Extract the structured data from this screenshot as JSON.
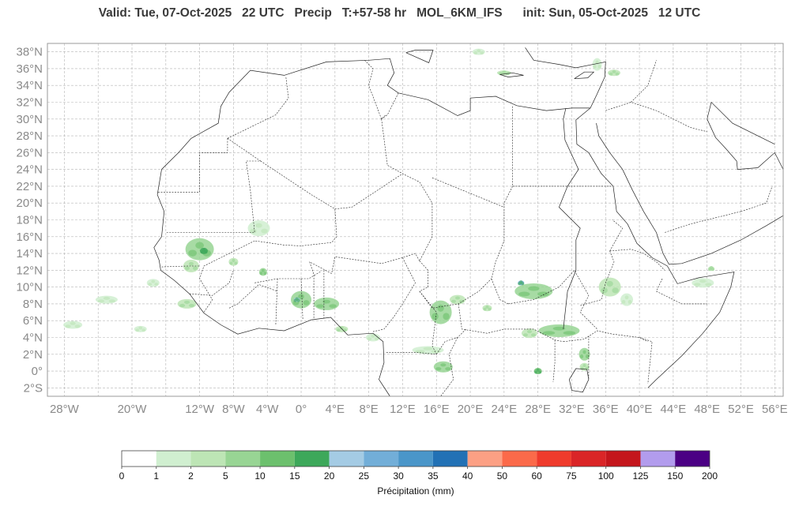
{
  "title": "Valid: Tue, 07-Oct-2025   22 UTC   Precip   T:+57-58 hr   MOL_6KM_IFS      init: Sun, 05-Oct-2025   12 UTC",
  "map": {
    "lat_labels": [
      "38°N",
      "36°N",
      "34°N",
      "32°N",
      "30°N",
      "28°N",
      "26°N",
      "24°N",
      "22°N",
      "20°N",
      "18°N",
      "16°N",
      "14°N",
      "12°N",
      "10°N",
      "8°N",
      "6°N",
      "4°N",
      "2°N",
      "0°",
      "2°S"
    ],
    "lon_labels": [
      "28°W",
      "20°W",
      "12°W",
      "8°W",
      "4°W",
      "0°",
      "4°E",
      "8°E",
      "12°E",
      "16°E",
      "20°E",
      "24°E",
      "28°E",
      "32°E",
      "36°E",
      "40°E",
      "44°E",
      "48°E",
      "52°E",
      "56°E"
    ],
    "lon_range": [
      -30,
      57
    ],
    "lat_range": [
      -3,
      39
    ],
    "grid": true
  },
  "colorbar": {
    "label": "Précipitation (mm)",
    "ticks": [
      "0",
      "1",
      "2",
      "5",
      "10",
      "15",
      "20",
      "25",
      "30",
      "35",
      "40",
      "50",
      "60",
      "75",
      "100",
      "125",
      "150",
      "200"
    ],
    "colors": [
      "#ffffff",
      "#d0efd0",
      "#bde5b5",
      "#98d594",
      "#6cc06d",
      "#3da85a",
      "#a4cbe4",
      "#72aed8",
      "#4a96c9",
      "#2271b5",
      "#fca084",
      "#fb6a4a",
      "#ef3b2c",
      "#da2527",
      "#c4161c",
      "#b29ced",
      "#4b0084"
    ]
  },
  "colors": {
    "border": "#222222",
    "grid": "#b4b4b4",
    "label": "#8a8a8a",
    "axes": "#9a9a9a"
  },
  "precip_cells": [
    {
      "lon": -5.0,
      "lat": 17.0,
      "rx": 14,
      "ry": 10,
      "c": 1
    },
    {
      "lon": -12.0,
      "lat": 14.5,
      "rx": 18,
      "ry": 14,
      "c": 3
    },
    {
      "lon": -13.0,
      "lat": 12.5,
      "rx": 10,
      "ry": 8,
      "c": 2
    },
    {
      "lon": -11.5,
      "lat": 14.3,
      "rx": 5,
      "ry": 4,
      "c": 5
    },
    {
      "lon": -8.0,
      "lat": 13.0,
      "rx": 6,
      "ry": 5,
      "c": 2
    },
    {
      "lon": -4.5,
      "lat": 11.8,
      "rx": 5,
      "ry": 5,
      "c": 3
    },
    {
      "lon": -13.5,
      "lat": 8.0,
      "rx": 12,
      "ry": 6,
      "c": 2
    },
    {
      "lon": -17.5,
      "lat": 10.5,
      "rx": 8,
      "ry": 5,
      "c": 1
    },
    {
      "lon": -23.0,
      "lat": 8.5,
      "rx": 14,
      "ry": 5,
      "c": 1
    },
    {
      "lon": -27.0,
      "lat": 5.5,
      "rx": 12,
      "ry": 5,
      "c": 1
    },
    {
      "lon": -19.0,
      "lat": 5.0,
      "rx": 8,
      "ry": 4,
      "c": 1
    },
    {
      "lon": 0.0,
      "lat": 8.5,
      "rx": 13,
      "ry": 11,
      "c": 3
    },
    {
      "lon": -0.5,
      "lat": 8.5,
      "rx": 4,
      "ry": 3,
      "c": 6
    },
    {
      "lon": 3.0,
      "lat": 8.0,
      "rx": 16,
      "ry": 8,
      "c": 3
    },
    {
      "lon": 4.8,
      "lat": 5.0,
      "rx": 8,
      "ry": 4,
      "c": 2
    },
    {
      "lon": 8.5,
      "lat": 4.0,
      "rx": 9,
      "ry": 5,
      "c": 1
    },
    {
      "lon": 16.5,
      "lat": 7.0,
      "rx": 14,
      "ry": 15,
      "c": 3
    },
    {
      "lon": 18.5,
      "lat": 8.5,
      "rx": 10,
      "ry": 6,
      "c": 2
    },
    {
      "lon": 22.0,
      "lat": 7.5,
      "rx": 6,
      "ry": 4,
      "c": 2
    },
    {
      "lon": 15.0,
      "lat": 2.5,
      "rx": 20,
      "ry": 5,
      "c": 1
    },
    {
      "lon": 16.8,
      "lat": 0.5,
      "rx": 12,
      "ry": 7,
      "c": 3
    },
    {
      "lon": 27.5,
      "lat": 9.5,
      "rx": 24,
      "ry": 10,
      "c": 3
    },
    {
      "lon": 26.0,
      "lat": 10.5,
      "rx": 4,
      "ry": 3,
      "c": 7
    },
    {
      "lon": 30.5,
      "lat": 4.8,
      "rx": 26,
      "ry": 8,
      "c": 3
    },
    {
      "lon": 27.0,
      "lat": 4.5,
      "rx": 10,
      "ry": 6,
      "c": 2
    },
    {
      "lon": 33.5,
      "lat": 2.0,
      "rx": 7,
      "ry": 8,
      "c": 3
    },
    {
      "lon": 33.5,
      "lat": 0.5,
      "rx": 6,
      "ry": 5,
      "c": 2
    },
    {
      "lon": 28.0,
      "lat": 0.0,
      "rx": 5,
      "ry": 4,
      "c": 4
    },
    {
      "lon": 36.5,
      "lat": 10.0,
      "rx": 14,
      "ry": 12,
      "c": 2
    },
    {
      "lon": 38.5,
      "lat": 8.5,
      "rx": 8,
      "ry": 8,
      "c": 1
    },
    {
      "lon": 47.5,
      "lat": 10.5,
      "rx": 14,
      "ry": 6,
      "c": 1
    },
    {
      "lon": 48.5,
      "lat": 12.2,
      "rx": 4,
      "ry": 3,
      "c": 2
    },
    {
      "lon": 35.0,
      "lat": 36.5,
      "rx": 6,
      "ry": 8,
      "c": 1
    },
    {
      "lon": 37.0,
      "lat": 35.5,
      "rx": 8,
      "ry": 4,
      "c": 2
    },
    {
      "lon": 24.0,
      "lat": 35.5,
      "rx": 9,
      "ry": 3,
      "c": 2
    },
    {
      "lon": 21.0,
      "lat": 38.0,
      "rx": 8,
      "ry": 4,
      "c": 1
    }
  ]
}
